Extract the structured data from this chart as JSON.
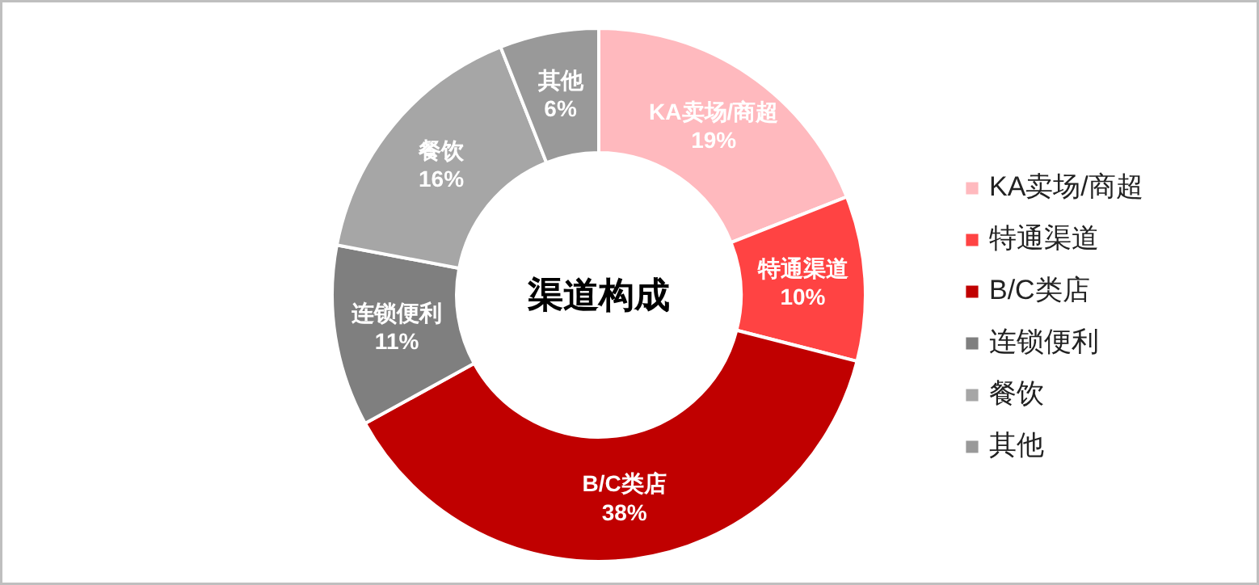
{
  "chart_data": {
    "type": "donut",
    "title": "渠道构成",
    "categories": [
      "KA卖场/商超",
      "特通渠道",
      "B/C类店",
      "连锁便利",
      "餐饮",
      "其他"
    ],
    "values": [
      19,
      10,
      38,
      11,
      16,
      6
    ],
    "value_labels": [
      "19%",
      "10%",
      "38%",
      "11%",
      "16%",
      "6%"
    ],
    "colors": [
      "#ffb9be",
      "#ff4343",
      "#c00000",
      "#7f7f7f",
      "#a6a6a6",
      "#999999"
    ],
    "legend": "right"
  }
}
